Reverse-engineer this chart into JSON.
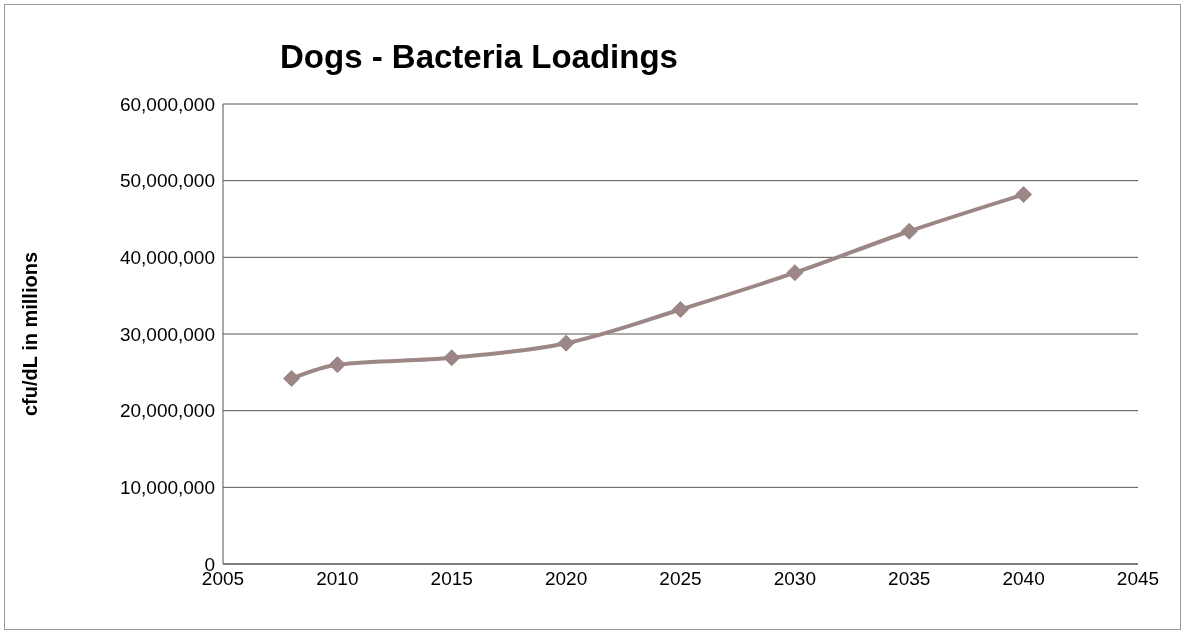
{
  "chart_data": {
    "type": "line",
    "title": "Dogs - Bacteria Loadings",
    "ylabel": "cfu/dL in millions",
    "x": [
      2008,
      2010,
      2015,
      2020,
      2025,
      2030,
      2035,
      2040
    ],
    "series": [
      {
        "color": "#9c8786",
        "values": [
          24200000,
          26000000,
          26900000,
          28800000,
          33200000,
          38000000,
          43400000,
          48200000
        ]
      }
    ],
    "xlim": [
      2005,
      2045
    ],
    "xticks": [
      2005,
      2010,
      2015,
      2020,
      2025,
      2030,
      2035,
      2040,
      2045
    ],
    "ylim": [
      0,
      60000000
    ],
    "yticks": [
      0,
      {
        "value": 10000000,
        "label": "10,000,000"
      },
      {
        "value": 20000000,
        "label": "20,000,000"
      },
      {
        "value": 30000000,
        "label": "30,000,000"
      },
      {
        "value": 40000000,
        "label": "40,000,000"
      },
      {
        "value": 50000000,
        "label": "50,000,000"
      },
      {
        "value": 60000000,
        "label": "60,000,000"
      }
    ],
    "grid": "y",
    "legend": false,
    "marker": "diamond",
    "line_style": "solid"
  }
}
